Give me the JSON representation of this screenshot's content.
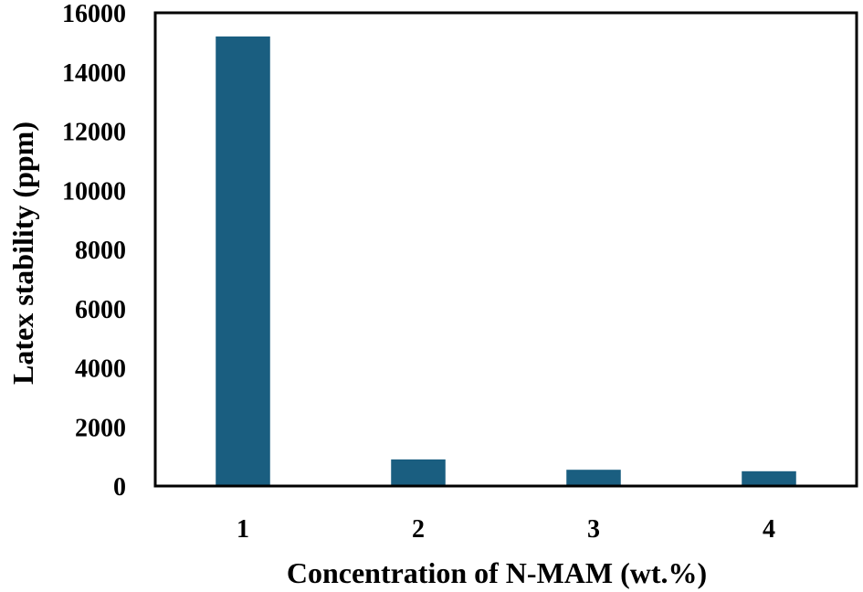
{
  "chart_data": {
    "type": "bar",
    "title": "",
    "xlabel": "Concentration of N-MAM (wt.%)",
    "ylabel": "Latex stability (ppm)",
    "categories": [
      "1",
      "2",
      "3",
      "4"
    ],
    "values": [
      15200,
      900,
      550,
      500
    ],
    "ylim": [
      0,
      16000
    ],
    "yticks": [
      "0",
      "2000",
      "4000",
      "6000",
      "8000",
      "10000",
      "12000",
      "14000",
      "16000"
    ],
    "bar_color": "#1a5e80",
    "grid": false,
    "legend": "none"
  }
}
